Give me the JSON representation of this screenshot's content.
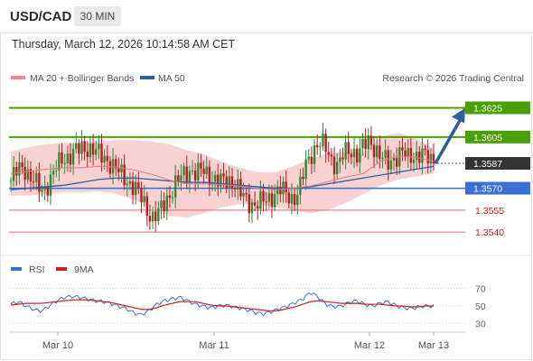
{
  "header": {
    "symbol": "USD/CAD",
    "timeframe": "30 MIN"
  },
  "timestamp": "Thursday, March 12, 2026 10:14:58 AM CET",
  "legend": {
    "bands": "MA 20 + Bollinger Bands",
    "ma50": "MA 50",
    "copyright": "Research © 2026 Trading Central"
  },
  "rsi_legend": {
    "rsi": "RSI",
    "ma": "9MA"
  },
  "colors": {
    "up": "#2e8b2e",
    "down": "#c0181f",
    "resistance": "#4aa000",
    "support": "#e8666b",
    "pivot": "#3a6fd8",
    "band": "#f7c9cb",
    "ma50": "#2c5f9e",
    "arrow": "#2c5f9e"
  },
  "chart_data": [
    {
      "type": "candlestick",
      "x_ticks": [
        "Mar 10",
        "Mar 11",
        "Mar 12",
        "Mar 13"
      ],
      "ylim": [
        1.3529,
        1.3637
      ],
      "levels": [
        {
          "label": "1.3625",
          "value": 1.3625,
          "kind": "resistance"
        },
        {
          "label": "1.3605",
          "value": 1.3605,
          "kind": "resistance"
        },
        {
          "label": "1.3587",
          "value": 1.3587,
          "kind": "last"
        },
        {
          "label": "1.3570",
          "value": 1.357,
          "kind": "pivot"
        },
        {
          "label": "1.3555",
          "value": 1.3555,
          "kind": "support"
        },
        {
          "label": "1.3540",
          "value": 1.354,
          "kind": "support"
        }
      ],
      "close_path": [
        1.3575,
        1.3582,
        1.3585,
        1.3578,
        1.3572,
        1.3568,
        1.3575,
        1.3583,
        1.359,
        1.3592,
        1.3595,
        1.3597,
        1.3598,
        1.3596,
        1.3592,
        1.359,
        1.3585,
        1.358,
        1.3576,
        1.3572,
        1.3566,
        1.3558,
        1.355,
        1.3552,
        1.356,
        1.3568,
        1.3575,
        1.3579,
        1.3583,
        1.358,
        1.3582,
        1.3579,
        1.3575,
        1.3574,
        1.3576,
        1.3573,
        1.3565,
        1.3561,
        1.3559,
        1.356,
        1.3562,
        1.3566,
        1.3569,
        1.3566,
        1.3563,
        1.3568,
        1.3585,
        1.3595,
        1.3601,
        1.3598,
        1.359,
        1.3586,
        1.3593,
        1.3596,
        1.3594,
        1.3598,
        1.3602,
        1.3597,
        1.359,
        1.3586,
        1.3592,
        1.3595,
        1.359,
        1.3593,
        1.3594,
        1.359,
        1.3587
      ],
      "bollinger_upper": [
        1.3595,
        1.3598,
        1.36,
        1.3601,
        1.3601,
        1.3602,
        1.3603,
        1.3603,
        1.3602,
        1.36,
        1.3596,
        1.3593,
        1.3588,
        1.3584,
        1.3581,
        1.3581,
        1.3585,
        1.359,
        1.3594,
        1.3595,
        1.3594,
        1.3605,
        1.3608,
        1.3604,
        1.3597
      ],
      "bollinger_lower": [
        1.3565,
        1.3565,
        1.3566,
        1.3567,
        1.3567,
        1.3568,
        1.3566,
        1.3562,
        1.3557,
        1.3551,
        1.355,
        1.3553,
        1.3557,
        1.3559,
        1.3559,
        1.3557,
        1.3555,
        1.3553,
        1.3555,
        1.356,
        1.3566,
        1.3572,
        1.3576,
        1.3578,
        1.358
      ],
      "ma50": [
        1.3569,
        1.357,
        1.3571,
        1.3572,
        1.3574,
        1.3576,
        1.3577,
        1.3577,
        1.3576,
        1.3575,
        1.3574,
        1.3574,
        1.3573,
        1.3572,
        1.3571,
        1.357,
        1.357,
        1.3571,
        1.3573,
        1.3575,
        1.3577,
        1.3579,
        1.3581,
        1.3583,
        1.3585
      ],
      "forecast_arrow": {
        "from": 1.3587,
        "to": 1.362
      }
    },
    {
      "type": "line",
      "y_ticks": [
        70,
        50,
        30
      ],
      "ylim": [
        20,
        80
      ],
      "rsi": [
        52,
        55,
        50,
        46,
        44,
        50,
        56,
        60,
        61,
        60,
        58,
        56,
        55,
        53,
        50,
        47,
        42,
        40,
        45,
        52,
        56,
        58,
        60,
        56,
        52,
        50,
        48,
        50,
        51,
        49,
        47,
        45,
        42,
        41,
        44,
        47,
        50,
        54,
        58,
        66,
        60,
        52,
        49,
        50,
        54,
        56,
        52,
        50,
        53,
        55,
        51,
        48,
        47,
        49,
        50,
        50
      ],
      "ma9": [
        51,
        52,
        53,
        53,
        53,
        54,
        55,
        56,
        57,
        57,
        57,
        56,
        55,
        54,
        52,
        50,
        48,
        46,
        46,
        48,
        51,
        53,
        55,
        55,
        55,
        53,
        51,
        50,
        50,
        49,
        48,
        47,
        46,
        45,
        44,
        45,
        47,
        49,
        52,
        55,
        56,
        55,
        54,
        53,
        53,
        53,
        52,
        52,
        52,
        51,
        50,
        50,
        49,
        49,
        50,
        50
      ]
    }
  ]
}
